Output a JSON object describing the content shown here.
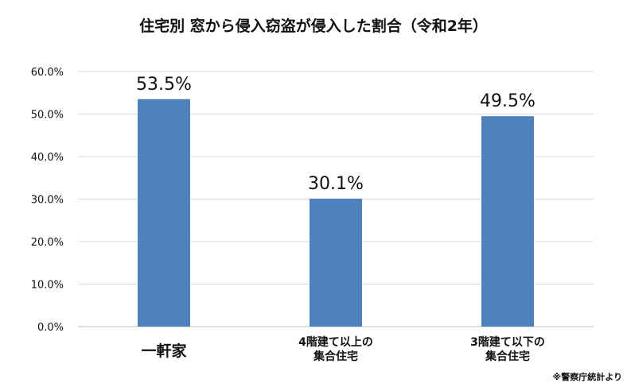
{
  "chart_data": {
    "type": "bar",
    "title": "住宅別 窓から侵入窃盗が侵入した割合（令和2年）",
    "categories": [
      [
        "一軒家"
      ],
      [
        "4階建て以上の",
        "集合住宅"
      ],
      [
        "3階建て以下の",
        "集合住宅"
      ]
    ],
    "values": [
      53.5,
      30.1,
      49.5
    ],
    "data_labels": [
      "53.5%",
      "30.1%",
      "49.5%"
    ],
    "yticks": [
      "0.0%",
      "10.0%",
      "20.0%",
      "30.0%",
      "40.0%",
      "50.0%",
      "60.0%"
    ],
    "ylim": [
      0,
      60
    ],
    "grid": true,
    "bar_color": "#4f81bd",
    "source": "※警察庁統計より"
  }
}
